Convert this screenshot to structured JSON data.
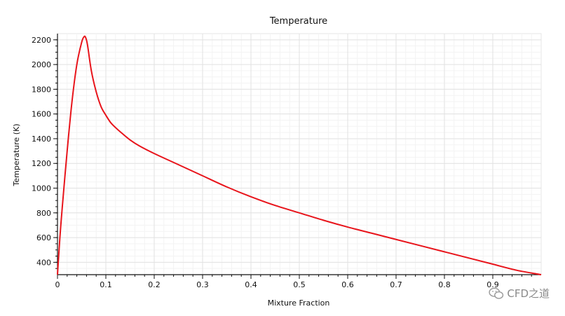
{
  "chart_data": {
    "type": "line",
    "title": "Temperature",
    "xlabel": "Mixture Fraction",
    "ylabel": "Temperature (K)",
    "xlim": [
      0,
      1
    ],
    "ylim": [
      300,
      2250
    ],
    "x_ticks": [
      0,
      0.1,
      0.2,
      0.3,
      0.4,
      0.5,
      0.6,
      0.7,
      0.8,
      0.9
    ],
    "x_tick_labels": [
      "0",
      "0.1",
      "0.2",
      "0.3",
      "0.4",
      "0.5",
      "0.6",
      "0.7",
      "0.8",
      "0.9"
    ],
    "y_ticks": [
      400,
      600,
      800,
      1000,
      1200,
      1400,
      1600,
      1800,
      2000,
      2200
    ],
    "y_tick_labels": [
      "400",
      "600",
      "800",
      "1000",
      "1200",
      "1400",
      "1600",
      "1800",
      "2000",
      "2200"
    ],
    "grid": true,
    "series": [
      {
        "color": "#e8141b",
        "x": [
          0,
          0.005,
          0.01,
          0.02,
          0.03,
          0.04,
          0.05,
          0.055,
          0.058,
          0.062,
          0.07,
          0.08,
          0.09,
          0.1,
          0.11,
          0.12,
          0.13,
          0.15,
          0.17,
          0.2,
          0.25,
          0.3,
          0.35,
          0.4,
          0.45,
          0.5,
          0.55,
          0.6,
          0.65,
          0.7,
          0.75,
          0.8,
          0.85,
          0.9,
          0.95,
          1.0
        ],
        "y": [
          300,
          600,
          850,
          1300,
          1700,
          2000,
          2180,
          2225,
          2220,
          2160,
          1950,
          1780,
          1660,
          1590,
          1530,
          1490,
          1455,
          1390,
          1340,
          1280,
          1190,
          1100,
          1010,
          930,
          860,
          800,
          740,
          685,
          635,
          585,
          535,
          485,
          435,
          385,
          335,
          300
        ]
      }
    ]
  },
  "watermark": {
    "text": "CFD之道",
    "icon": "wechat-icon"
  }
}
